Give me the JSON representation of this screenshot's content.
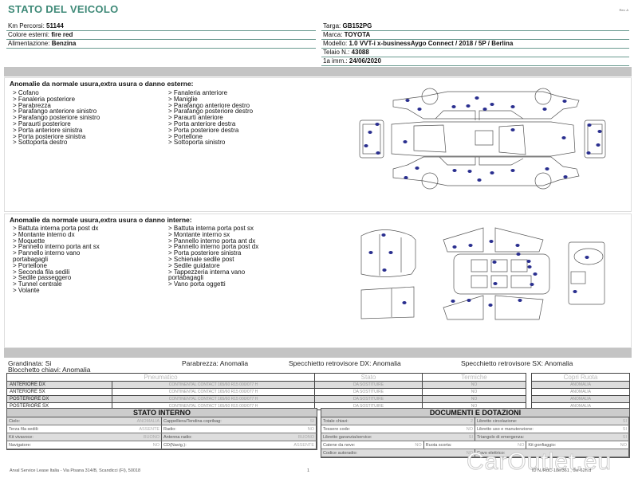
{
  "header": {
    "title": "STATO DEL VEICOLO",
    "rev": "Rev. A"
  },
  "left_info": [
    {
      "label": "Km Percorsi: ",
      "value": "51144"
    },
    {
      "label": "Colore esterni: ",
      "value": "fire red"
    },
    {
      "label": "Alimentazione: ",
      "value": "Benzina"
    }
  ],
  "right_info": [
    {
      "label": "Targa: ",
      "value": "GB152PG"
    },
    {
      "label": "Marca: ",
      "value": "TOYOTA"
    },
    {
      "label": "Modello: ",
      "value": "1.0 VVT-i x-businessAygo Connect / 2018 / 5P / Berlina"
    },
    {
      "label": "Telaio N.: ",
      "value": "43088"
    },
    {
      "label": "1a imm.: ",
      "value": "24/06/2020"
    }
  ],
  "exterior": {
    "heading": "Anomalie da normale usura,extra usura o danno esterne:",
    "col1": "> Cofano\n> Fanaleria posteriore\n> Parabrezza\n> Parafango anteriore sinistro\n> Parafango posteriore sinistro\n> Paraurti posteriore\n> Porta anteriore sinistra\n> Porta posteriore sinistra\n> Sottoporta destro",
    "col2": "> Fanaleria anteriore\n> Maniglie\n> Parafango anteriore destro\n> Parafango posteriore destro\n> Paraurti anteriore\n> Porta anteriore destra\n> Porta posteriore destra\n> Portellone\n> Sottoporta sinistro"
  },
  "interior": {
    "heading": "Anomalie da normale usura,extra usura o danno interne:",
    "col1": "> Battuta interna porta post dx\n> Montante interno dx\n> Moquette\n> Pannello interno porta ant sx\n> Pannello interno vano\nportabagagli\n> Portellone\n> Seconda fila sedili\n> Sedile passeggero\n> Tunnel centrale\n> Volante",
    "col2": "> Battuta interna porta post sx\n> Montante interno sx\n> Pannello interno porta ant dx\n> Pannello interno porta post dx\n> Porta posteriore sinistra\n> Schienale sedile post\n> Sedile guidatore\n> Tappezzeria interna vano\nportabagagli\n> Vano porta oggetti"
  },
  "misc": {
    "grandinata": "Grandinata: Si",
    "blocchetto": "Blocchetto chiavi: Anomalia",
    "parabrezza": "Parabrezza: Anomalia",
    "spec_dx": "Specchietto retrovisore DX: Anomalia",
    "spec_sx": "Specchietto retrovisore SX: Anomalia"
  },
  "tyres": {
    "headers": [
      "Pneumatico",
      "Stato",
      "Termiche",
      "Copri Ruota"
    ],
    "rows": [
      {
        "pos": "ANTERIORE DX",
        "tyre": "CONTINENTAL CONTACT 165/60 R15 000/077 H",
        "stato": "DA SOSTITUIRE",
        "termiche": "NO",
        "copri": "ANOMALIA"
      },
      {
        "pos": "ANTERIORE SX",
        "tyre": "CONTINENTAL CONTACT 165/60 R15 000/077 H",
        "stato": "DA SOSTITUIRE",
        "termiche": "NO",
        "copri": "ANOMALIA"
      },
      {
        "pos": "POSTERIORE DX",
        "tyre": "CONTINENTAL CONTACT 165/60 R15 000/077 H",
        "stato": "DA SOSTITUIRE",
        "termiche": "NO",
        "copri": "ANOMALIA"
      },
      {
        "pos": "POSTERIORE SX",
        "tyre": "CONTINENTAL CONTACT 165/60 R15 000/077 H",
        "stato": "DA SOSTITUIRE",
        "termiche": "NO",
        "copri": "ANOMALIA"
      }
    ]
  },
  "stato_interno": {
    "title": "STATO INTERNO",
    "rows": [
      [
        {
          "l": "Cielo:",
          "v": "ANOMALIA"
        },
        {
          "l": "Cappelliera/Tendina copribag:",
          "v": "SI"
        }
      ],
      [
        {
          "l": "Terza fila sedili:",
          "v": "ASSENTE"
        },
        {
          "l": "Radio:",
          "v": "NO"
        }
      ],
      [
        {
          "l": "Kit vivavoce:",
          "v": "BUONO"
        },
        {
          "l": "Antenna radio:",
          "v": "BUONO"
        }
      ],
      [
        {
          "l": "Navigatore:",
          "v": "NO"
        },
        {
          "l": "CD(Navig.):",
          "v": "ASSENTE"
        }
      ]
    ]
  },
  "documenti": {
    "title": "DOCUMENTI E DOTAZIONI",
    "rows": [
      [
        {
          "l": "Totale chiavi:",
          "v": "2"
        },
        {
          "l": "Libretto circolazione:",
          "v": "SI"
        }
      ],
      [
        {
          "l": "Tessere code:",
          "v": "NO"
        },
        {
          "l": "Libretto uso e manutenzione:",
          "v": "SI"
        }
      ],
      [
        {
          "l": "Libretto garanzia/service:",
          "v": "SI"
        },
        {
          "l": "Triangolo di emergenza:",
          "v": "SI"
        }
      ],
      [
        {
          "l": "Catene da neve:",
          "v": "NO"
        },
        {
          "l": "Ruota scorta:",
          "v": "NO"
        },
        {
          "l": "Kit gonfiaggio:",
          "v": "NO"
        }
      ],
      [
        {
          "l": "Codice autoradio:",
          "v": "NO"
        },
        {
          "l": "Cavo elettrico:",
          "v": ""
        }
      ]
    ]
  },
  "footer": {
    "address": "Arval Service Lease Italia - Via Pisana 314/B, Scandicci (FI), 50018",
    "page": "1",
    "id": "ID N./RdC-18e/361 , 0ie-62h.d"
  },
  "watermark": "CarOutlet.eu",
  "colors": {
    "title": "#3f8a78",
    "marker": "#2a2f8f",
    "bar": "#c4c4c4"
  }
}
